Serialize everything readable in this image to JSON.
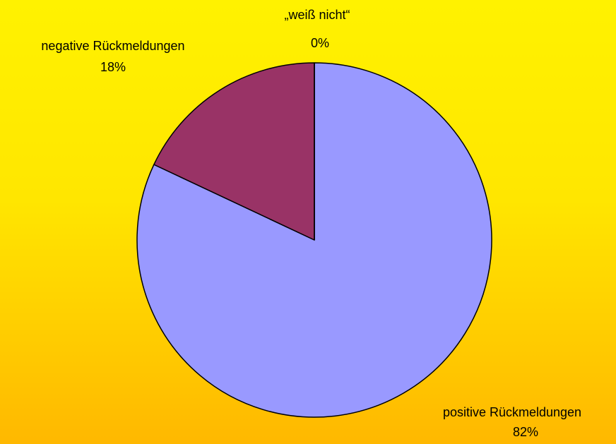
{
  "chart_data": {
    "type": "pie",
    "title": "",
    "slices": [
      {
        "name": "positive Rückmeldungen",
        "value": 82,
        "pct_label": "82%",
        "color": "#9999FF"
      },
      {
        "name": "negative Rückmeldungen",
        "value": 18,
        "pct_label": "18%",
        "color": "#993366"
      },
      {
        "name": "„weiß nicht“",
        "value": 0,
        "pct_label": "0%",
        "color": "#FFFFCC"
      }
    ],
    "start_angle_deg": 0,
    "direction": "clockwise",
    "background": [
      "#FFF200",
      "#FFB800"
    ]
  }
}
